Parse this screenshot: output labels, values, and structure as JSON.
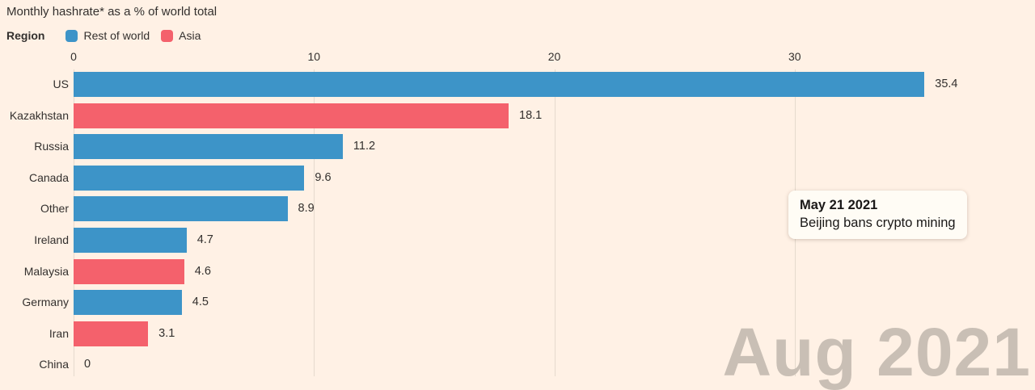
{
  "page": {
    "background": "#FFF1E5"
  },
  "title": "Monthly hashrate* as a % of world total",
  "legend": {
    "label": "Region",
    "items": [
      {
        "name": "Rest of world",
        "color": "#3D94C8"
      },
      {
        "name": "Asia",
        "color": "#F4616C"
      }
    ]
  },
  "chart_data": {
    "type": "bar",
    "orientation": "horizontal",
    "title": "Monthly hashrate* as a % of world total",
    "xlabel": "",
    "ylabel": "",
    "xlim": [
      0,
      40
    ],
    "xticks": [
      "0",
      "10",
      "20",
      "30"
    ],
    "grid": true,
    "legend_position": "top-left",
    "categories": [
      "US",
      "Kazakhstan",
      "Russia",
      "Canada",
      "Other",
      "Ireland",
      "Malaysia",
      "Germany",
      "Iran",
      "China"
    ],
    "values": [
      35.4,
      18.1,
      11.2,
      9.6,
      8.9,
      4.7,
      4.6,
      4.5,
      3.1,
      0
    ],
    "value_labels": [
      "35.4",
      "18.1",
      "11.2",
      "9.6",
      "8.9",
      "4.7",
      "4.6",
      "4.5",
      "3.1",
      "0"
    ],
    "regions": [
      "Rest of world",
      "Asia",
      "Rest of world",
      "Rest of world",
      "Rest of world",
      "Rest of world",
      "Asia",
      "Rest of world",
      "Asia",
      "Asia"
    ]
  },
  "annotation": {
    "date": "May 21 2021",
    "text": "Beijing bans crypto mining"
  },
  "watermark": "Aug 2021",
  "colors": {
    "rest_of_world": "#3D94C8",
    "asia": "#F4616C",
    "grid": "#E5DACD",
    "text": "#33302E",
    "watermark": "#C9BFB5",
    "annotation_bg": "#FFFCF5"
  }
}
